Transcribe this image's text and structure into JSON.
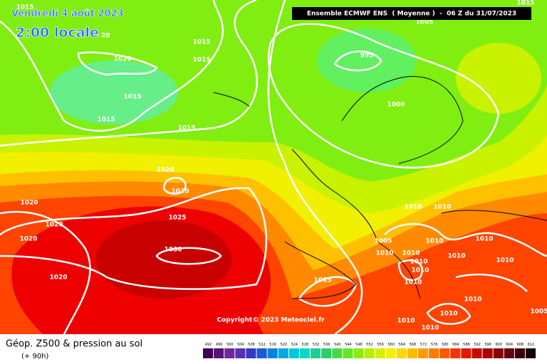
{
  "header": {
    "date": "Vendredi 4 août 2023",
    "time": "2:00 locale",
    "model": "Ensemble ECMWF ENS  ( Moyenne )  -  06 Z du 31/07/2023"
  },
  "isobar_labels": [
    "1015",
    "20",
    "1020",
    "1015",
    "1015",
    "1015",
    "1015",
    "1015",
    "995",
    "1000",
    "1005",
    "1015",
    "1020",
    "1020",
    "1020",
    "1020",
    "1020",
    "1025",
    "1030",
    "1020",
    "1010",
    "1010",
    "1005",
    "1010",
    "1010",
    "1010",
    "1010",
    "1010",
    "1010",
    "1010",
    "1010",
    "1010",
    "1015",
    "1010",
    "1010",
    "1010",
    "1010",
    "1005"
  ],
  "copyright": "Copyright© 2023 Meteociel.fr",
  "footer": {
    "title": "Géop. Z500 & pression au sol",
    "lead": "(+ 90h)"
  },
  "colorbar": [
    492,
    496,
    500,
    504,
    508,
    512,
    516,
    520,
    524,
    528,
    532,
    536,
    540,
    544,
    548,
    552,
    556,
    560,
    564,
    568,
    572,
    576,
    580,
    584,
    588,
    592,
    596,
    600,
    604,
    608,
    612
  ]
}
